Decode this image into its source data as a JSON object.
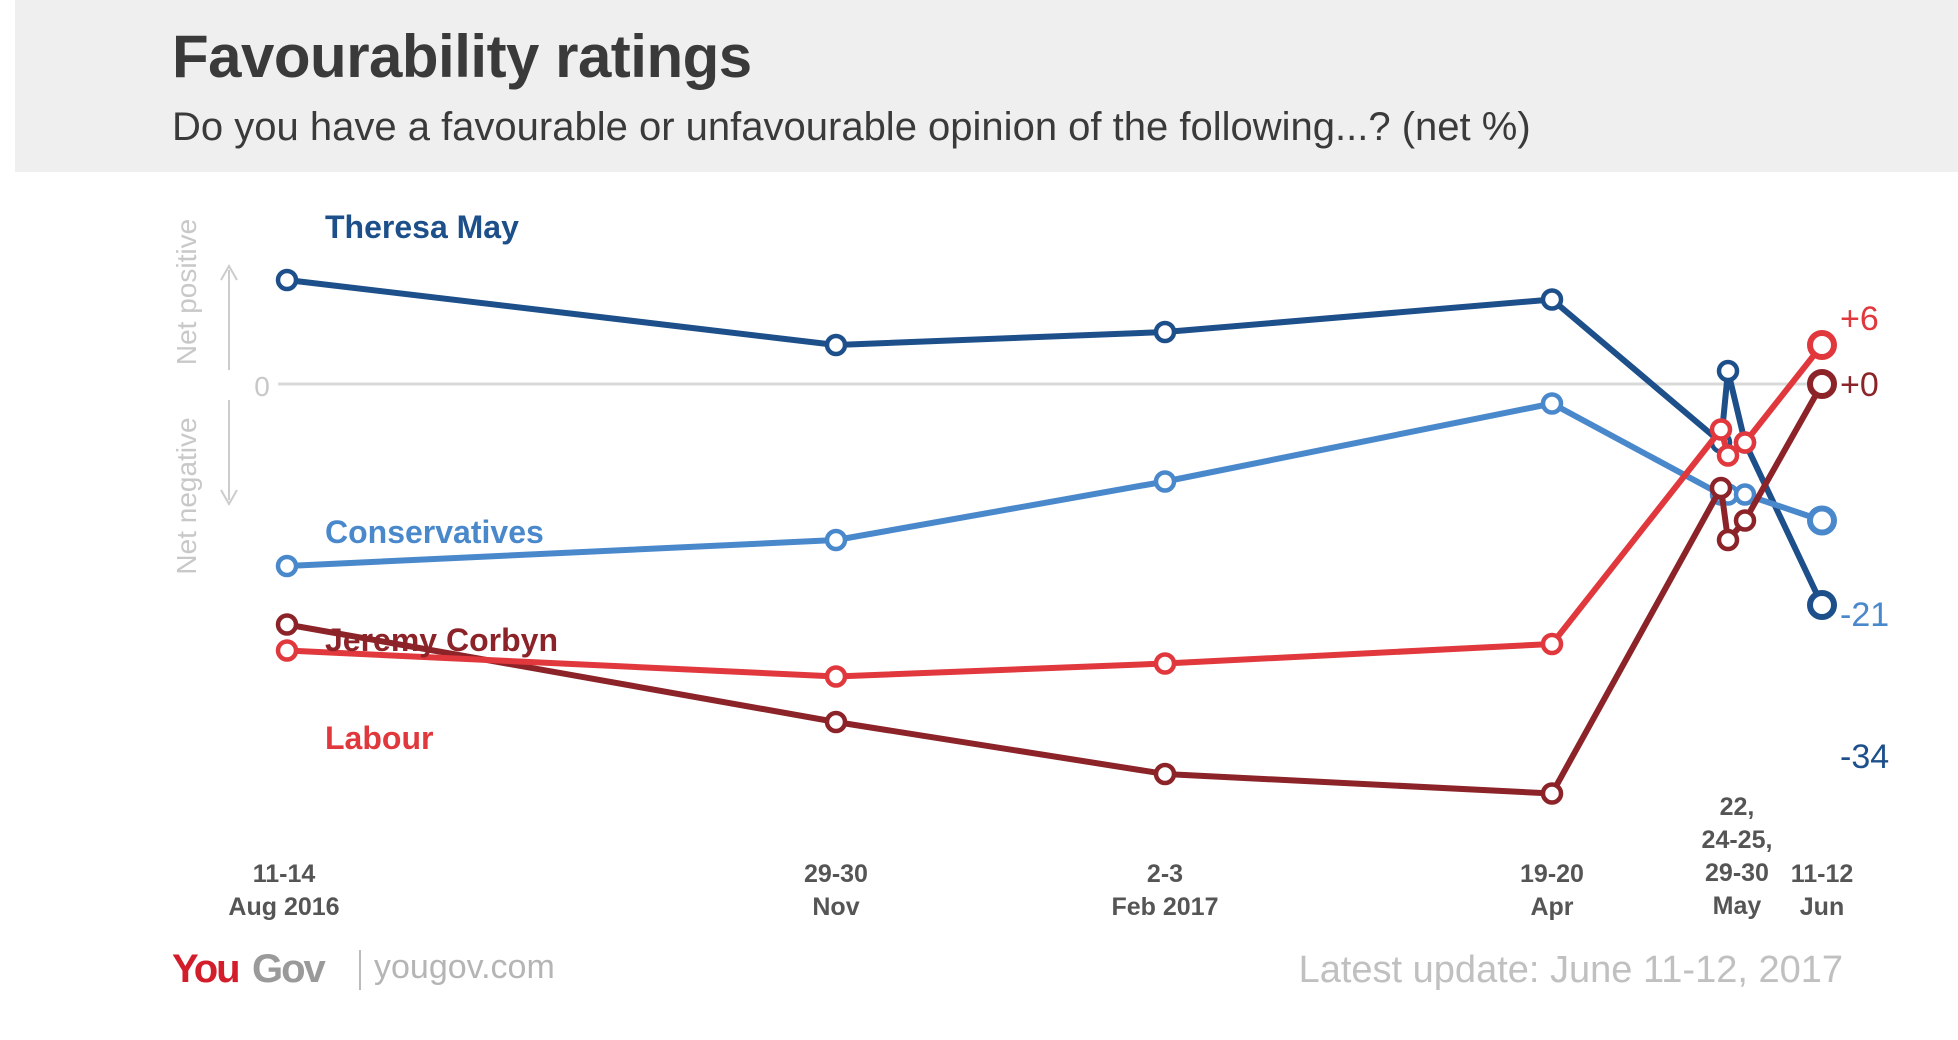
{
  "title": "Favourability ratings",
  "subtitle": "Do you have a favourable or unfavourable opinion of the following...? (net %)",
  "axis_labels": {
    "positive": "Net positive",
    "negative": "Net negative",
    "zero": "0"
  },
  "footer": {
    "logo_you": "You",
    "logo_gov": "Gov",
    "site": "yougov.com",
    "update": "Latest update: June 11-12, 2017"
  },
  "chart_data": {
    "type": "line",
    "title": "Favourability ratings",
    "subtitle": "Do you have a favourable or unfavourable opinion of the following...? (net %)",
    "x_labels": [
      [
        "11-14",
        "Aug 2016"
      ],
      [
        "29-30",
        "Nov"
      ],
      [
        "2-3",
        "Feb 2017"
      ],
      [
        "19-20",
        "Apr"
      ],
      [
        "22,",
        "24-25,",
        "29-30",
        "May"
      ],
      [
        "11-12",
        "Jun"
      ]
    ],
    "x": [
      "2016-08-12",
      "2016-11-29",
      "2017-02-02",
      "2017-04-19",
      "2017-05-22",
      "2017-05-24",
      "2017-05-29",
      "2017-06-11"
    ],
    "ylim": [
      -55,
      20
    ],
    "series": [
      {
        "name": "Theresa May",
        "color": "#1d4f8a",
        "values": [
          16,
          6,
          8,
          13,
          -9,
          2,
          -9,
          -34
        ]
      },
      {
        "name": "Conservatives",
        "color": "#4a88cc",
        "values": [
          -28,
          -24,
          -15,
          -3,
          -17,
          -17,
          -17,
          -21
        ]
      },
      {
        "name": "Jeremy Corbyn",
        "color": "#8b2328",
        "values": [
          -37,
          -52,
          -60,
          -63,
          -16,
          -24,
          -21,
          0
        ]
      },
      {
        "name": "Labour",
        "color": "#e0383c",
        "values": [
          -41,
          -45,
          -43,
          -40,
          -7,
          -11,
          -9,
          6
        ]
      }
    ],
    "end_labels": [
      "-34",
      "-21",
      "+0",
      "+6"
    ],
    "grid": false,
    "legend": "inline labels at left"
  }
}
